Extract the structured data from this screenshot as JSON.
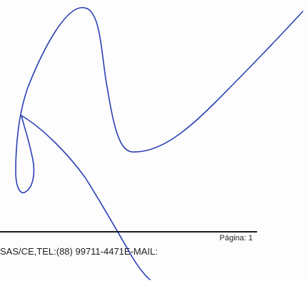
{
  "footer": {
    "page_label": "Página: 1",
    "contact_line": "SAS/CE,TEL:(88) 99711-4471E-MAIL:"
  },
  "signature": {
    "ink_color": "#2b3fb3"
  }
}
